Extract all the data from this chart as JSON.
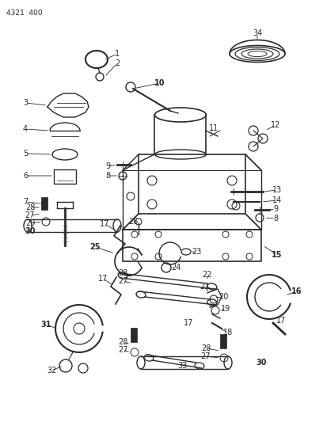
{
  "bg_color": "#ffffff",
  "line_color": "#2a2a2a",
  "title_text": "4321  400",
  "fig_width": 4.08,
  "fig_height": 5.33,
  "dpi": 100
}
